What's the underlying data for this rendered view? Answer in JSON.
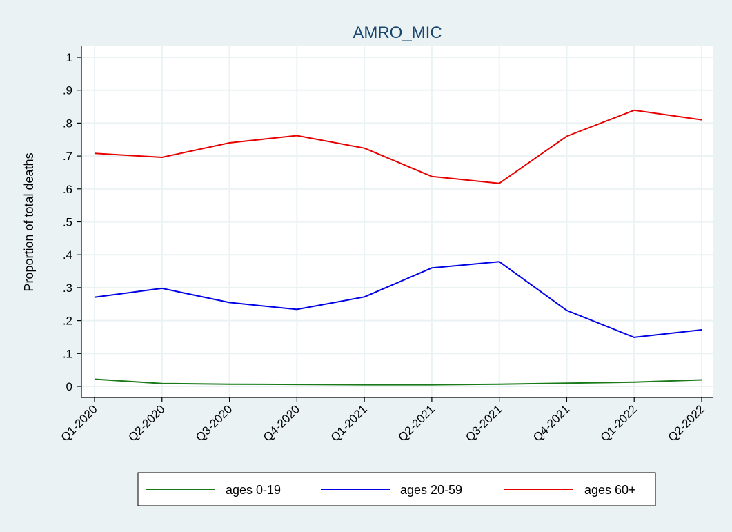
{
  "chart_data": {
    "type": "line",
    "title": "AMRO_MIC",
    "xlabel": "",
    "ylabel": "Proportion of total deaths",
    "categories": [
      "Q1-2020",
      "Q2-2020",
      "Q3-2020",
      "Q4-2020",
      "Q1-2021",
      "Q2-2021",
      "Q3-2021",
      "Q4-2021",
      "Q1-2022",
      "Q2-2022"
    ],
    "ylim": [
      0,
      1
    ],
    "yticks": [
      0,
      0.1,
      0.2,
      0.3,
      0.4,
      0.5,
      0.6,
      0.7,
      0.8,
      0.9,
      1
    ],
    "ytick_labels": [
      "0",
      ".1",
      ".2",
      ".3",
      ".4",
      ".5",
      ".6",
      ".7",
      ".8",
      ".9",
      "1"
    ],
    "grid": true,
    "legend_position": "bottom",
    "series": [
      {
        "name": "ages 0-19",
        "color": "#1a7a1a",
        "values": [
          0.022,
          0.009,
          0.007,
          0.006,
          0.005,
          0.005,
          0.007,
          0.01,
          0.013,
          0.02
        ]
      },
      {
        "name": "ages 20-59",
        "color": "#0000e6",
        "values": [
          0.271,
          0.298,
          0.255,
          0.234,
          0.272,
          0.36,
          0.379,
          0.231,
          0.149,
          0.172
        ]
      },
      {
        "name": "ages 60+",
        "color": "#e60000",
        "values": [
          0.708,
          0.696,
          0.74,
          0.762,
          0.724,
          0.638,
          0.617,
          0.76,
          0.839,
          0.81
        ]
      }
    ]
  }
}
